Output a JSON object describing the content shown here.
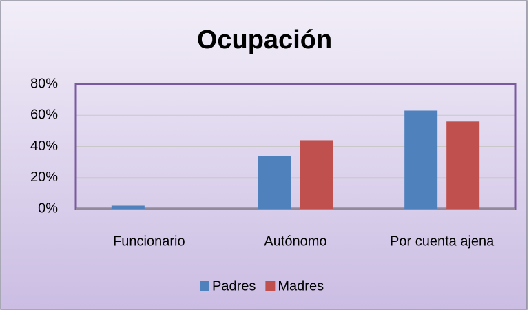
{
  "chart_data": {
    "type": "bar",
    "title": "Ocupación",
    "categories": [
      "Funcionario",
      "Autónomo",
      "Por cuenta ajena"
    ],
    "series": [
      {
        "name": "Padres",
        "color": "#4f81bd",
        "values": [
          2,
          34,
          63
        ]
      },
      {
        "name": "Madres",
        "color": "#c0504d",
        "values": [
          0,
          44,
          56
        ]
      }
    ],
    "ylim": [
      0,
      80
    ],
    "yticks": [
      {
        "value": 0,
        "label": "0%"
      },
      {
        "value": 20,
        "label": "20%"
      },
      {
        "value": 40,
        "label": "40%"
      },
      {
        "value": 60,
        "label": "60%"
      },
      {
        "value": 80,
        "label": "80%"
      }
    ],
    "grid": true,
    "legend": "bottom"
  }
}
